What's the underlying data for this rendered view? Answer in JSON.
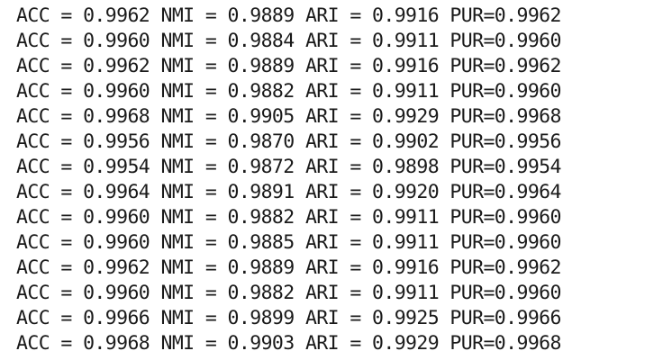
{
  "log_lines": [
    "ACC = 0.9962 NMI = 0.9889 ARI = 0.9916 PUR=0.9962",
    "ACC = 0.9960 NMI = 0.9884 ARI = 0.9911 PUR=0.9960",
    "ACC = 0.9962 NMI = 0.9889 ARI = 0.9916 PUR=0.9962",
    "ACC = 0.9960 NMI = 0.9882 ARI = 0.9911 PUR=0.9960",
    "ACC = 0.9968 NMI = 0.9905 ARI = 0.9929 PUR=0.9968",
    "ACC = 0.9956 NMI = 0.9870 ARI = 0.9902 PUR=0.9956",
    "ACC = 0.9954 NMI = 0.9872 ARI = 0.9898 PUR=0.9954",
    "ACC = 0.9964 NMI = 0.9891 ARI = 0.9920 PUR=0.9964",
    "ACC = 0.9960 NMI = 0.9882 ARI = 0.9911 PUR=0.9960",
    "ACC = 0.9960 NMI = 0.9885 ARI = 0.9911 PUR=0.9960",
    "ACC = 0.9962 NMI = 0.9889 ARI = 0.9916 PUR=0.9962",
    "ACC = 0.9960 NMI = 0.9882 ARI = 0.9911 PUR=0.9960",
    "ACC = 0.9966 NMI = 0.9899 ARI = 0.9925 PUR=0.9966",
    "ACC = 0.9968 NMI = 0.9903 ARI = 0.9929 PUR=0.9968"
  ],
  "colors": {
    "background": "#ffffff",
    "text": "#1a1a1a"
  }
}
